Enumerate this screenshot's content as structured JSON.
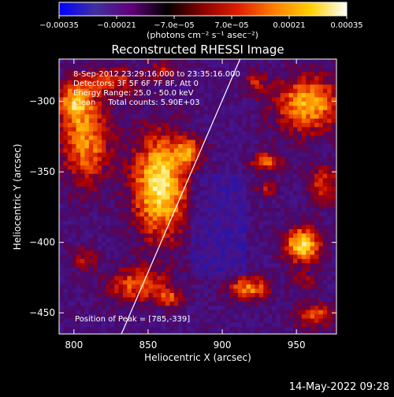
{
  "chart_data": {
    "type": "heatmap",
    "title": "Reconstructed RHESSI Image",
    "xlabel": "Heliocentric X (arcsec)",
    "ylabel": "Heliocentric Y (arcsec)",
    "xlim": [
      790,
      977
    ],
    "ylim": [
      -465,
      -270
    ],
    "x_ticks": [
      800,
      850,
      900,
      950
    ],
    "y_ticks": [
      -300,
      -350,
      -400,
      -450
    ],
    "x_tick_labels": [
      "800",
      "850",
      "900",
      "950"
    ],
    "y_tick_labels": [
      "-300",
      "-350",
      "-400",
      "-450"
    ],
    "colorbar": {
      "range": [
        -0.00035,
        0.00035
      ],
      "ticks": [
        -0.00035,
        -0.00021,
        -7e-05,
        7e-05,
        0.00021,
        0.00035
      ],
      "tick_labels": [
        "-0.00035",
        "-0.00021",
        "-7.0e-05",
        "7.0e-05",
        "0.00021",
        "0.00035"
      ],
      "unit": "(photons cm⁻² s⁻¹ asec⁻²)",
      "colors": [
        "#0000ff",
        "#4030a0",
        "#60007a",
        "#000000",
        "#8a0000",
        "#e02000",
        "#ff8000",
        "#ffd000",
        "#ffffff"
      ]
    },
    "info_lines": [
      "8-Sep-2012 23:29:16.000 to 23:35:16.000",
      "Detectors: 3F 5F 6F 7F 8F, Att 0",
      "Energy Range: 25.0 - 50.0 keV",
      "Clean     Total counts: 5.90E+03"
    ],
    "peak_label": "Position of Peak = [785,-339]",
    "limb_line": {
      "points": [
        [
          832,
          -465
        ],
        [
          912,
          -270
        ]
      ],
      "color": "#ffffff"
    },
    "blobs": [
      {
        "x": 858,
        "y": -360,
        "sx": 13,
        "sy": 26,
        "amp": 1.6
      },
      {
        "x": 878,
        "y": -335,
        "sx": 7,
        "sy": 7,
        "amp": 0.9
      },
      {
        "x": 808,
        "y": -328,
        "sx": 12,
        "sy": 22,
        "amp": 1.1
      },
      {
        "x": 800,
        "y": -300,
        "sx": 8,
        "sy": 10,
        "amp": 1.0
      },
      {
        "x": 827,
        "y": -286,
        "sx": 13,
        "sy": 7,
        "amp": 0.7
      },
      {
        "x": 860,
        "y": -278,
        "sx": 7,
        "sy": 5,
        "amp": 0.6
      },
      {
        "x": 843,
        "y": -430,
        "sx": 15,
        "sy": 9,
        "amp": 0.9
      },
      {
        "x": 865,
        "y": -440,
        "sx": 7,
        "sy": 5,
        "amp": 0.7
      },
      {
        "x": 807,
        "y": -412,
        "sx": 6,
        "sy": 6,
        "amp": 0.6
      },
      {
        "x": 918,
        "y": -433,
        "sx": 10,
        "sy": 6,
        "amp": 1.1
      },
      {
        "x": 954,
        "y": -402,
        "sx": 9,
        "sy": 9,
        "amp": 1.5
      },
      {
        "x": 958,
        "y": -302,
        "sx": 16,
        "sy": 14,
        "amp": 1.3
      },
      {
        "x": 922,
        "y": -287,
        "sx": 6,
        "sy": 6,
        "amp": 0.6
      },
      {
        "x": 930,
        "y": -343,
        "sx": 8,
        "sy": 5,
        "amp": 0.9
      },
      {
        "x": 930,
        "y": -362,
        "sx": 5,
        "sy": 4,
        "amp": 0.6
      },
      {
        "x": 968,
        "y": -360,
        "sx": 8,
        "sy": 10,
        "amp": 0.8
      },
      {
        "x": 962,
        "y": -452,
        "sx": 10,
        "sy": 6,
        "amp": 0.9
      },
      {
        "x": 955,
        "y": -428,
        "sx": 6,
        "sy": 5,
        "amp": 0.5
      }
    ]
  },
  "footer": {
    "timestamp": "14-May-2022 09:28"
  }
}
